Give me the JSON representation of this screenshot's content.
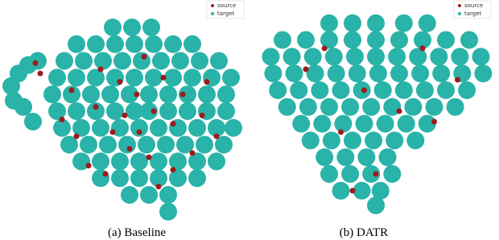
{
  "chart_data": [
    {
      "type": "scatter",
      "title": "(a) Baseline",
      "xlim": [
        0,
        100
      ],
      "ylim": [
        0,
        100
      ],
      "series": [
        {
          "name": "source",
          "color": "#9b1c1c",
          "x": [
            40,
            48,
            55,
            62,
            70,
            45,
            52,
            60,
            38,
            30,
            35,
            66,
            74,
            82,
            78,
            58,
            50,
            42,
            64,
            88,
            28,
            24,
            56,
            70,
            84,
            13,
            15
          ],
          "y": [
            70,
            64,
            58,
            50,
            44,
            40,
            32,
            28,
            52,
            38,
            24,
            66,
            58,
            48,
            30,
            76,
            48,
            20,
            14,
            38,
            60,
            46,
            40,
            22,
            64,
            73,
            68
          ]
        },
        {
          "name": "target",
          "color": "#2ab3a8",
          "x": [
            45,
            53,
            61,
            30,
            38,
            46,
            54,
            62,
            70,
            78,
            25,
            33,
            41,
            49,
            57,
            65,
            73,
            81,
            89,
            22,
            30,
            38,
            46,
            54,
            62,
            70,
            78,
            86,
            94,
            20,
            28,
            36,
            44,
            52,
            60,
            68,
            76,
            84,
            92,
            22,
            30,
            38,
            46,
            54,
            60,
            68,
            76,
            84,
            92,
            24,
            32,
            40,
            48,
            56,
            64,
            72,
            80,
            88,
            95,
            27,
            35,
            43,
            51,
            59,
            67,
            75,
            83,
            91,
            32,
            40,
            48,
            56,
            64,
            72,
            80,
            88,
            40,
            48,
            56,
            64,
            72,
            80,
            52,
            60,
            68,
            3,
            6,
            10,
            14,
            4,
            8,
            12,
            68
          ],
          "y": [
            90,
            90,
            90,
            82,
            82,
            82,
            82,
            82,
            82,
            82,
            74,
            74,
            74,
            74,
            74,
            74,
            74,
            74,
            74,
            66,
            66,
            66,
            66,
            66,
            66,
            66,
            66,
            66,
            66,
            58,
            58,
            58,
            58,
            58,
            58,
            58,
            58,
            58,
            58,
            50,
            50,
            50,
            50,
            50,
            50,
            50,
            50,
            50,
            50,
            42,
            42,
            42,
            42,
            42,
            42,
            42,
            42,
            42,
            42,
            34,
            34,
            34,
            34,
            34,
            34,
            34,
            34,
            34,
            26,
            26,
            26,
            26,
            26,
            26,
            26,
            26,
            18,
            18,
            18,
            18,
            18,
            18,
            10,
            10,
            10,
            62,
            68,
            72,
            74,
            55,
            52,
            45,
            2
          ]
        }
      ]
    },
    {
      "type": "scatter",
      "title": "(b) DATR",
      "xlim": [
        0,
        100
      ],
      "ylim": [
        0,
        100
      ],
      "series": [
        {
          "name": "source",
          "color": "#9b1c1c",
          "x": [
            20,
            45,
            70,
            35,
            60,
            85,
            50,
            28,
            75,
            40
          ],
          "y": [
            70,
            60,
            80,
            40,
            50,
            65,
            20,
            80,
            45,
            12
          ]
        },
        {
          "name": "target",
          "color": "#2ab3a8",
          "x": [
            30,
            40,
            50,
            62,
            72,
            10,
            20,
            30,
            40,
            50,
            60,
            70,
            80,
            90,
            5,
            14,
            23,
            32,
            41,
            50,
            59,
            68,
            77,
            86,
            95,
            6,
            15,
            24,
            33,
            42,
            51,
            60,
            69,
            78,
            87,
            96,
            8,
            17,
            26,
            35,
            44,
            53,
            62,
            71,
            80,
            89,
            12,
            21,
            30,
            39,
            48,
            57,
            66,
            75,
            84,
            18,
            27,
            36,
            45,
            54,
            63,
            72,
            22,
            31,
            40,
            49,
            58,
            67,
            28,
            37,
            46,
            55,
            30,
            39,
            48,
            57,
            35,
            44,
            52,
            50
          ],
          "y": [
            92,
            92,
            92,
            92,
            92,
            84,
            84,
            84,
            84,
            84,
            84,
            84,
            84,
            84,
            76,
            76,
            76,
            76,
            76,
            76,
            76,
            76,
            76,
            76,
            76,
            68,
            68,
            68,
            68,
            68,
            68,
            68,
            68,
            68,
            68,
            68,
            60,
            60,
            60,
            60,
            60,
            60,
            60,
            60,
            60,
            60,
            52,
            52,
            52,
            52,
            52,
            52,
            52,
            52,
            52,
            44,
            44,
            44,
            44,
            44,
            44,
            44,
            36,
            36,
            36,
            36,
            36,
            36,
            28,
            28,
            28,
            28,
            20,
            20,
            20,
            20,
            12,
            12,
            12,
            5
          ]
        }
      ]
    }
  ]
}
